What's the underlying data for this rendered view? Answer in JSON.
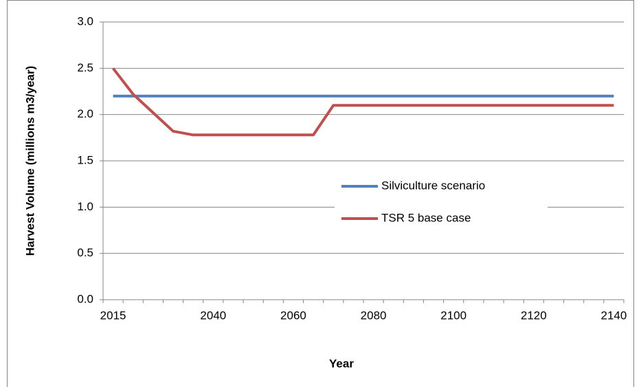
{
  "chart_data": {
    "type": "line",
    "x_label": "Year",
    "y_label": "Harvest  Volume (millions m3/year)",
    "categories": [
      "2015",
      null,
      null,
      null,
      null,
      "2040",
      null,
      null,
      null,
      "2060",
      null,
      null,
      null,
      "2080",
      null,
      null,
      null,
      "2100",
      null,
      null,
      null,
      "2120",
      null,
      null,
      null,
      "2140"
    ],
    "series": [
      {
        "name": "Silviculture scenario",
        "color": "#4f81bd",
        "values": [
          2.2,
          2.2,
          2.2,
          2.2,
          2.2,
          2.2,
          2.2,
          2.2,
          2.2,
          2.2,
          2.2,
          2.2,
          2.2,
          2.2,
          2.2,
          2.2,
          2.2,
          2.2,
          2.2,
          2.2,
          2.2,
          2.2,
          2.2,
          2.2,
          2.2,
          2.2
        ]
      },
      {
        "name": "TSR 5 base case",
        "color": "#c0504d",
        "values": [
          2.5,
          2.22,
          2.02,
          1.82,
          1.78,
          1.78,
          1.78,
          1.78,
          1.78,
          1.78,
          1.78,
          2.1,
          2.1,
          2.1,
          2.1,
          2.1,
          2.1,
          2.1,
          2.1,
          2.1,
          2.1,
          2.1,
          2.1,
          2.1,
          2.1,
          2.1
        ]
      }
    ],
    "ylim": [
      0,
      3
    ],
    "yticks": [
      {
        "value": 0,
        "label": "0.0"
      },
      {
        "value": 0.5,
        "label": "0.5"
      },
      {
        "value": 1,
        "label": "1.0"
      },
      {
        "value": 1.5,
        "label": "1.5"
      },
      {
        "value": 2,
        "label": "2.0"
      },
      {
        "value": 2.5,
        "label": "2.5"
      },
      {
        "value": 3,
        "label": "3.0"
      }
    ],
    "grid": true
  }
}
